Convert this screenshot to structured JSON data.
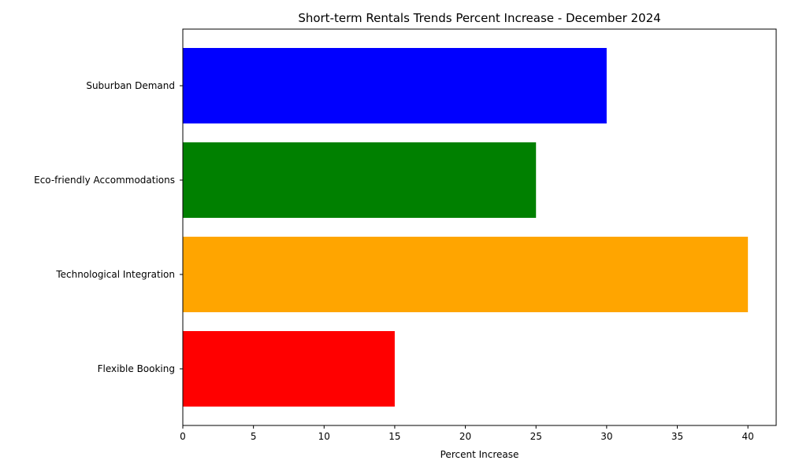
{
  "chart_data": {
    "type": "bar",
    "orientation": "horizontal",
    "title": "Short-term Rentals Trends Percent Increase - December 2024",
    "xlabel": "Percent Increase",
    "ylabel": "",
    "categories": [
      "Flexible Booking",
      "Technological Integration",
      "Eco-friendly Accommodations",
      "Suburban Demand"
    ],
    "values": [
      15,
      40,
      25,
      30
    ],
    "colors": [
      "#ff0000",
      "#ffa500",
      "#008000",
      "#0000ff"
    ],
    "xlim": [
      0,
      42
    ],
    "xticks": [
      0,
      5,
      10,
      15,
      20,
      25,
      30,
      35,
      40
    ],
    "xtick_labels": [
      "0",
      "5",
      "10",
      "15",
      "20",
      "25",
      "30",
      "35",
      "40"
    ],
    "grid": false,
    "legend": false
  }
}
